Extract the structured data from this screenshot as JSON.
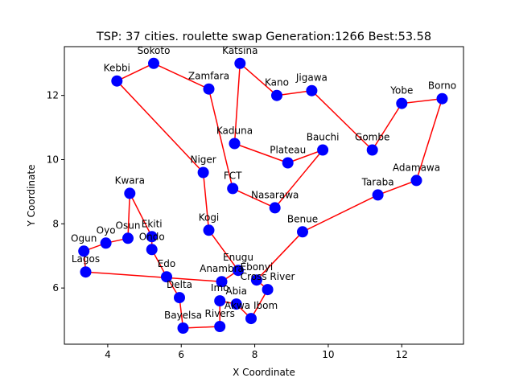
{
  "chart_data": {
    "type": "scatter",
    "title": "TSP: 37 cities. roulette swap Generation:1266 Best:53.58",
    "xlabel": "X Coordinate",
    "ylabel": "Y Coordinate",
    "xlim": [
      2.82,
      13.68
    ],
    "ylim": [
      4.25,
      13.52
    ],
    "xticks": [
      4,
      6,
      8,
      10,
      12
    ],
    "yticks": [
      6,
      8,
      10,
      12
    ],
    "grid": false,
    "route_color": "#ff0000",
    "city_color": "#0000ff",
    "route_closed": true,
    "cities": [
      {
        "name": "Lagos",
        "x": 3.4,
        "y": 6.5
      },
      {
        "name": "Ogun",
        "x": 3.35,
        "y": 7.15
      },
      {
        "name": "Oyo",
        "x": 3.95,
        "y": 7.4
      },
      {
        "name": "Osun",
        "x": 4.55,
        "y": 7.55
      },
      {
        "name": "Kwara",
        "x": 4.6,
        "y": 8.95
      },
      {
        "name": "Ekiti",
        "x": 5.2,
        "y": 7.6
      },
      {
        "name": "Ondo",
        "x": 5.2,
        "y": 7.2
      },
      {
        "name": "Edo",
        "x": 5.6,
        "y": 6.35
      },
      {
        "name": "Delta",
        "x": 5.95,
        "y": 5.7
      },
      {
        "name": "Bayelsa",
        "x": 6.05,
        "y": 4.75
      },
      {
        "name": "Rivers",
        "x": 7.05,
        "y": 4.8
      },
      {
        "name": "Imo",
        "x": 7.05,
        "y": 5.6
      },
      {
        "name": "Abia",
        "x": 7.5,
        "y": 5.5
      },
      {
        "name": "Akwa Ibom",
        "x": 7.9,
        "y": 5.05
      },
      {
        "name": "Cross River",
        "x": 8.35,
        "y": 5.95
      },
      {
        "name": "Ebonyi",
        "x": 8.05,
        "y": 6.25
      },
      {
        "name": "Benue",
        "x": 9.3,
        "y": 7.75
      },
      {
        "name": "Taraba",
        "x": 11.35,
        "y": 8.9
      },
      {
        "name": "Adamawa",
        "x": 12.4,
        "y": 9.35
      },
      {
        "name": "Borno",
        "x": 13.1,
        "y": 11.9
      },
      {
        "name": "Yobe",
        "x": 12.0,
        "y": 11.75
      },
      {
        "name": "Gombe",
        "x": 11.2,
        "y": 10.3
      },
      {
        "name": "Jigawa",
        "x": 9.55,
        "y": 12.15
      },
      {
        "name": "Kano",
        "x": 8.6,
        "y": 12.0
      },
      {
        "name": "Katsina",
        "x": 7.6,
        "y": 13.0
      },
      {
        "name": "Kaduna",
        "x": 7.45,
        "y": 10.5
      },
      {
        "name": "Plateau",
        "x": 8.9,
        "y": 9.9
      },
      {
        "name": "Bauchi",
        "x": 9.85,
        "y": 10.3
      },
      {
        "name": "Nasarawa",
        "x": 8.55,
        "y": 8.5
      },
      {
        "name": "FCT",
        "x": 7.4,
        "y": 9.1
      },
      {
        "name": "Zamfara",
        "x": 6.75,
        "y": 12.2
      },
      {
        "name": "Sokoto",
        "x": 5.25,
        "y": 13.0
      },
      {
        "name": "Kebbi",
        "x": 4.25,
        "y": 12.45
      },
      {
        "name": "Niger",
        "x": 6.6,
        "y": 9.6
      },
      {
        "name": "Kogi",
        "x": 6.75,
        "y": 7.8
      },
      {
        "name": "Enugu",
        "x": 7.55,
        "y": 6.55
      },
      {
        "name": "Anambra",
        "x": 7.1,
        "y": 6.2
      }
    ]
  }
}
